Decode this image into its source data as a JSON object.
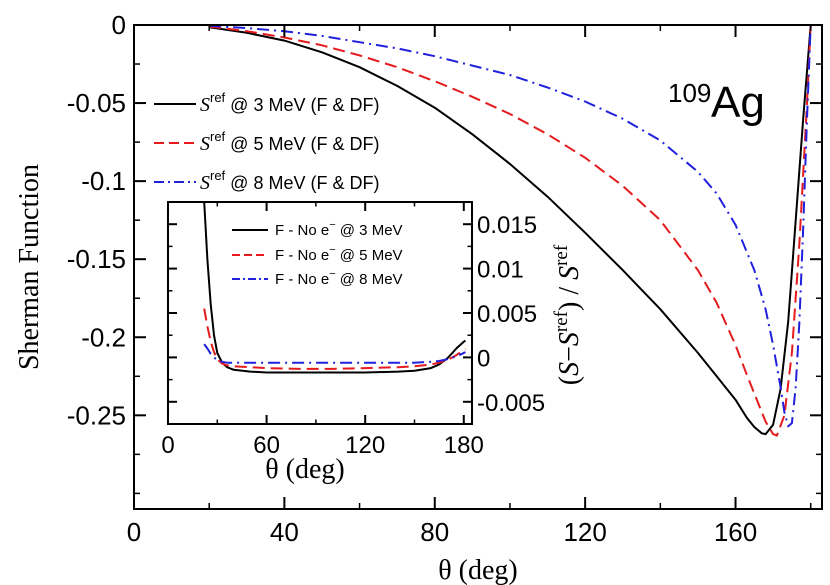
{
  "chart_data": [
    {
      "type": "line",
      "title": "",
      "annotation": {
        "mass_number": "109",
        "element": "Ag"
      },
      "xlabel": "θ (deg)",
      "ylabel": "Sherman Function",
      "xlim": [
        0,
        183
      ],
      "ylim": [
        -0.31,
        0
      ],
      "xticks": [
        0,
        40,
        80,
        120,
        160
      ],
      "yticks": [
        0,
        -0.05,
        -0.1,
        -0.15,
        -0.2,
        -0.25
      ],
      "xtick_labels": [
        "0",
        "40",
        "80",
        "120",
        "160"
      ],
      "ytick_labels": [
        "0",
        "-0.05",
        "-0.1",
        "-0.15",
        "-0.2",
        "-0.25"
      ],
      "legend_position": "left",
      "series": [
        {
          "name": "S^ref @ 3 MeV (F & DF)",
          "label_sym": "S",
          "label_sup": "ref",
          "label_rest": " @ 3 MeV (F & DF)",
          "color": "#000000",
          "style": "solid",
          "x": [
            20,
            30,
            40,
            50,
            60,
            70,
            80,
            90,
            100,
            110,
            120,
            130,
            140,
            150,
            155,
            160,
            163,
            165,
            167,
            168,
            170,
            172,
            174,
            176,
            178,
            180
          ],
          "y": [
            -0.0015,
            -0.005,
            -0.01,
            -0.0175,
            -0.027,
            -0.039,
            -0.053,
            -0.07,
            -0.089,
            -0.11,
            -0.133,
            -0.157,
            -0.182,
            -0.21,
            -0.225,
            -0.24,
            -0.2515,
            -0.2575,
            -0.2615,
            -0.262,
            -0.256,
            -0.233,
            -0.19,
            -0.125,
            -0.06,
            0.0
          ]
        },
        {
          "name": "S^ref @ 5 MeV (F & DF)",
          "label_sym": "S",
          "label_sup": "ref",
          "label_rest": " @ 5 MeV (F & DF)",
          "color": "#e41a1c",
          "style": "dashed",
          "x": [
            20,
            30,
            40,
            50,
            60,
            70,
            80,
            90,
            100,
            110,
            120,
            130,
            140,
            150,
            155,
            160,
            163,
            165,
            168,
            170,
            171,
            173,
            175,
            177,
            179,
            180
          ],
          "y": [
            -0.001,
            -0.004,
            -0.008,
            -0.013,
            -0.0195,
            -0.027,
            -0.036,
            -0.046,
            -0.057,
            -0.07,
            -0.085,
            -0.103,
            -0.125,
            -0.157,
            -0.178,
            -0.205,
            -0.224,
            -0.236,
            -0.254,
            -0.262,
            -0.263,
            -0.25,
            -0.21,
            -0.14,
            -0.05,
            0.0
          ]
        },
        {
          "name": "S^ref @ 8 MeV (F & DF)",
          "label_sym": "S",
          "label_sup": "ref",
          "label_rest": " @ 8 MeV (F & DF)",
          "color": "#2020dd",
          "style": "dash-dot",
          "x": [
            20,
            30,
            40,
            50,
            60,
            70,
            80,
            90,
            100,
            110,
            120,
            130,
            140,
            150,
            155,
            160,
            165,
            168,
            170,
            172,
            173,
            174,
            175,
            176,
            177,
            178,
            179,
            180
          ],
          "y": [
            -0.0005,
            -0.002,
            -0.004,
            -0.007,
            -0.011,
            -0.015,
            -0.02,
            -0.026,
            -0.032,
            -0.04,
            -0.049,
            -0.06,
            -0.074,
            -0.094,
            -0.108,
            -0.128,
            -0.157,
            -0.182,
            -0.205,
            -0.232,
            -0.248,
            -0.257,
            -0.255,
            -0.232,
            -0.19,
            -0.13,
            -0.06,
            0.0
          ]
        }
      ]
    },
    {
      "type": "line",
      "title": "",
      "xlabel": "θ (deg)",
      "ylabel_parts": {
        "open": "(",
        "s1": "S",
        "minus": "−",
        "s2": "S",
        "sup1": "ref",
        "mid": ") / ",
        "s3": "S",
        "sup2": "ref"
      },
      "xlim": [
        0,
        185
      ],
      "ylim": [
        -0.0075,
        0.0175
      ],
      "xticks": [
        0,
        60,
        120,
        180
      ],
      "yticks": [
        0.015,
        0.01,
        0.005,
        0,
        -0.005
      ],
      "xtick_labels": [
        "0",
        "60",
        "120",
        "180"
      ],
      "ytick_labels": [
        "0.015",
        "0.01",
        "0.005",
        "0",
        "-0.005"
      ],
      "legend_position": "top-right",
      "series": [
        {
          "name": "F - No e− @ 3 MeV",
          "label_a": "F - No e",
          "label_sup": "−",
          "label_b": " @ 3 MeV",
          "color": "#000000",
          "style": "solid",
          "x": [
            22,
            24,
            26,
            28,
            30,
            33,
            36,
            40,
            50,
            60,
            80,
            100,
            120,
            140,
            150,
            160,
            165,
            170,
            173,
            176,
            179,
            181
          ],
          "y": [
            0.0175,
            0.011,
            0.006,
            0.0025,
            0.0005,
            -0.0006,
            -0.0011,
            -0.0014,
            -0.0016,
            -0.0017,
            -0.0017,
            -0.0017,
            -0.0017,
            -0.0016,
            -0.0015,
            -0.0012,
            -0.0008,
            -0.0001,
            0.0005,
            0.0011,
            0.0016,
            0.0019
          ]
        },
        {
          "name": "F - No e− @ 5 MeV",
          "label_a": "F - No e",
          "label_sup": "−",
          "label_b": " @ 5 MeV",
          "color": "#e41a1c",
          "style": "dashed",
          "x": [
            22,
            24,
            26,
            28,
            30,
            33,
            36,
            40,
            50,
            60,
            80,
            100,
            120,
            140,
            150,
            160,
            165,
            170,
            175,
            179,
            181
          ],
          "y": [
            0.0055,
            0.0035,
            0.0018,
            0.0006,
            -0.0002,
            -0.0007,
            -0.0009,
            -0.001,
            -0.0011,
            -0.0012,
            -0.0013,
            -0.0013,
            -0.0012,
            -0.0011,
            -0.001,
            -0.0008,
            -0.0006,
            -0.0003,
            0.0002,
            0.0007,
            0.0009
          ]
        },
        {
          "name": "F - No e− @ 8 MeV",
          "label_a": "F - No e",
          "label_sup": "−",
          "label_b": " @ 8 MeV",
          "color": "#2020dd",
          "style": "dash-dot",
          "x": [
            22,
            24,
            26,
            28,
            30,
            33,
            36,
            40,
            50,
            60,
            80,
            100,
            120,
            140,
            150,
            160,
            165,
            170,
            175,
            179,
            181
          ],
          "y": [
            0.0015,
            0.001,
            0.0004,
            0.0,
            -0.0003,
            -0.0005,
            -0.0006,
            -0.0006,
            -0.0006,
            -0.0006,
            -0.0006,
            -0.0006,
            -0.0006,
            -0.0006,
            -0.0006,
            -0.0005,
            -0.0004,
            -0.0002,
            0.0001,
            0.0004,
            0.0006
          ]
        }
      ]
    }
  ]
}
